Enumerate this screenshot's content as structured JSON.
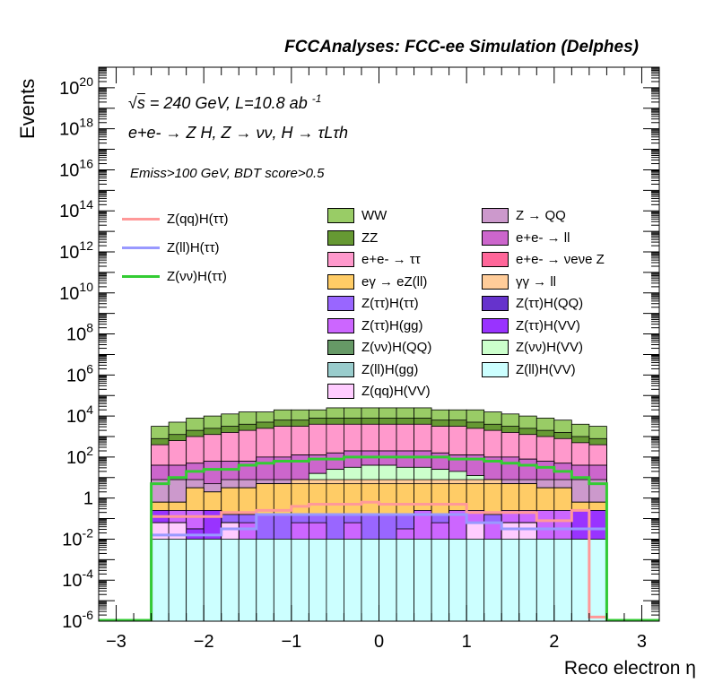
{
  "header": "FCCAnalyses: FCC-ee Simulation (Delphes)",
  "annotations": {
    "line1_sqrt": "s",
    "line1_rest": " = 240 GeV, L=10.8 ab",
    "line1_sup": "-1",
    "line2": "e+e- → Z H, Z → νν, H → τLτh",
    "line3": "Emiss>100 GeV, BDT score>0.5"
  },
  "chart_data": {
    "type": "bar",
    "subtype": "stacked-histogram-log",
    "xlabel": "Reco electron η",
    "ylabel": "Events",
    "xlim": [
      -3.2,
      3.2
    ],
    "ylim": [
      1e-06,
      1e+21
    ],
    "yscale": "log",
    "x_ticks": [
      "−3",
      "−2",
      "−1",
      "0",
      "1",
      "2",
      "3"
    ],
    "y_ticks": [
      "10^-6",
      "10^-4",
      "10^-2",
      "1",
      "10^2",
      "10^4",
      "10^6",
      "10^8",
      "10^10",
      "10^12",
      "10^14",
      "10^16",
      "10^18",
      "10^20"
    ],
    "bin_edges": [
      -2.6,
      -2.4,
      -2.2,
      -2.0,
      -1.8,
      -1.6,
      -1.4,
      -1.2,
      -1.0,
      -0.8,
      -0.6,
      -0.4,
      -0.2,
      0.0,
      0.2,
      0.4,
      0.6,
      0.8,
      1.0,
      1.2,
      1.4,
      1.6,
      1.8,
      2.0,
      2.2,
      2.4,
      2.6
    ],
    "stack_boundaries": [
      {
        "name": "Z(ll)H(VV)",
        "color": "#ccffff",
        "values": [
          -2,
          -2,
          -2,
          -2,
          -2,
          -2,
          -2,
          -2,
          -2,
          -2,
          -2,
          -2,
          -2,
          -2,
          -2,
          -2,
          -2,
          -2,
          -2,
          -2,
          -2,
          -2,
          -2,
          -2,
          -2,
          -2
        ]
      },
      {
        "name": "Z(qq)H(VV)",
        "color": "#ffccff",
        "values": [
          -1.2,
          -1.2,
          -2,
          -2,
          -1.2,
          -2,
          -2,
          -2,
          -2,
          -2,
          -2,
          -2,
          -2,
          -2,
          -2,
          -2,
          -2,
          -2,
          -1.2,
          -2,
          -1.2,
          -1.2,
          -2,
          -2,
          -2,
          -2
        ]
      },
      {
        "name": "Z(ττ)H(QQ)",
        "color": "#6633cc",
        "values": [
          -1.2,
          -1.2,
          -2,
          -2,
          -1.2,
          -2,
          -2,
          -2,
          -2,
          -2,
          -2,
          -2,
          -2,
          -2,
          -2,
          -2,
          -2,
          -2,
          -1.2,
          -2,
          -1.2,
          -1.2,
          -2,
          -5.2,
          -2,
          -2
        ]
      },
      {
        "name": "Z(ττ)H(VV)",
        "color": "#9933ff",
        "values": [
          -0.6,
          -1.2,
          -1.5,
          -0.6,
          -1.2,
          -2,
          -2,
          -2,
          -2,
          -2,
          -2,
          -2,
          -2,
          -2,
          -2,
          -2,
          -2,
          -2,
          -1.2,
          -2,
          -1.2,
          -1.2,
          -2,
          -5.2,
          -0.6,
          -0.6
        ]
      },
      {
        "name": "Z(ll)H(gg)",
        "color": "#99cccc",
        "values": [
          -0.6,
          -1.2,
          -1.5,
          -0.6,
          -1.2,
          -2,
          -2,
          -2,
          -2,
          -2,
          -2,
          -2,
          -2,
          -2,
          -2,
          -2,
          -2,
          -2,
          -1.2,
          -2,
          -1.2,
          -1.2,
          -2,
          -5.2,
          -0.6,
          -0.6
        ]
      },
      {
        "name": "Z(νν)H(QQ)",
        "color": "#669966",
        "values": [
          -0.6,
          -1.2,
          -1.5,
          -0.6,
          -1.2,
          -2,
          -2,
          -2,
          -2,
          -2,
          -2,
          -2,
          -2,
          -2,
          -2,
          -2,
          -2,
          -2,
          -1.2,
          -2,
          -1.2,
          -1.2,
          -2,
          -2,
          -0.6,
          -0.6
        ]
      },
      {
        "name": "Z(ττ)H(gg)",
        "color": "#cc66ff",
        "values": [
          -0.6,
          -0.6,
          -0.6,
          -0.6,
          -1.2,
          -1.2,
          -2,
          -2,
          -1.2,
          -1.2,
          -2,
          -1.2,
          -2,
          -2,
          -1.5,
          -0.6,
          -1.2,
          -0.6,
          -0.6,
          -1.2,
          -0.6,
          -0.6,
          -0.6,
          -0.6,
          -0.6,
          -0.6
        ]
      },
      {
        "name": "Z(ττ)H(ττ)",
        "color": "#9966ff",
        "values": [
          -0.6,
          -0.6,
          -0.6,
          -0.6,
          -0.8,
          -0.8,
          -0.8,
          -0.8,
          -0.8,
          -0.8,
          -0.8,
          -0.8,
          -0.8,
          -0.8,
          -0.8,
          -0.8,
          -0.8,
          -0.8,
          -0.8,
          -0.8,
          -0.8,
          -0.8,
          -0.8,
          -0.8,
          -0.6,
          -0.6
        ]
      },
      {
        "name": "eγ → eZ(ll)",
        "color": "#ffcc66",
        "values": [
          -0.2,
          -0.2,
          0.5,
          0.3,
          0.5,
          0.5,
          0.7,
          0.7,
          0.7,
          0.7,
          0.7,
          0.7,
          0.7,
          0.7,
          0.7,
          0.7,
          0.7,
          0.7,
          0.7,
          0.7,
          0.7,
          0.7,
          0.5,
          0.5,
          -0.2,
          -0.2
        ]
      },
      {
        "name": "γγ → ll",
        "color": "#ffcc99",
        "values": [
          -0.2,
          -0.2,
          0.5,
          0.3,
          0.5,
          0.5,
          0.7,
          0.7,
          0.9,
          0.9,
          0.9,
          0.9,
          0.9,
          0.9,
          0.9,
          0.9,
          0.9,
          0.9,
          0.9,
          0.9,
          0.7,
          0.7,
          0.5,
          0.5,
          -0.2,
          -0.2
        ]
      },
      {
        "name": "Z(νν)H(VV)",
        "color": "#ccffcc",
        "values": [
          -0.2,
          -0.2,
          0.5,
          0.3,
          0.5,
          0.5,
          0.7,
          0.7,
          0.9,
          1.2,
          1.4,
          1.5,
          1.6,
          1.6,
          1.5,
          1.5,
          1.4,
          1.3,
          1.1,
          0.9,
          0.7,
          0.7,
          0.5,
          0.5,
          -0.2,
          -0.2
        ]
      },
      {
        "name": "Z → QQ",
        "color": "#cc99cc",
        "values": [
          0.9,
          0.9,
          0.9,
          0.7,
          0.9,
          0.9,
          0.9,
          0.9,
          0.9,
          1.2,
          1.4,
          1.5,
          1.6,
          1.6,
          1.5,
          1.5,
          1.4,
          1.3,
          1.1,
          0.9,
          0.9,
          0.9,
          0.9,
          0.9,
          0.9,
          0.9
        ]
      },
      {
        "name": "e+e- → ll",
        "color": "#cc66cc",
        "values": [
          1.6,
          1.6,
          1.7,
          1.8,
          1.8,
          1.8,
          2.0,
          2.0,
          2.1,
          2.1,
          2.2,
          2.3,
          2.3,
          2.3,
          2.3,
          2.3,
          2.2,
          2.1,
          2.1,
          2.0,
          2.0,
          1.9,
          1.8,
          1.7,
          1.6,
          1.6
        ]
      },
      {
        "name": "e+e- → νeνe Z",
        "color": "#ff6699",
        "values": [
          1.6,
          1.6,
          1.7,
          1.8,
          1.8,
          1.8,
          2.0,
          2.0,
          2.1,
          2.1,
          2.2,
          2.3,
          2.3,
          2.3,
          2.3,
          2.3,
          2.2,
          2.1,
          2.1,
          2.0,
          2.0,
          1.9,
          1.8,
          1.7,
          1.6,
          1.6
        ]
      },
      {
        "name": "e+e- → ττ",
        "color": "#ff99cc",
        "values": [
          2.6,
          2.8,
          3.0,
          3.1,
          3.2,
          3.3,
          3.4,
          3.5,
          3.5,
          3.6,
          3.6,
          3.6,
          3.6,
          3.6,
          3.6,
          3.6,
          3.5,
          3.5,
          3.4,
          3.3,
          3.2,
          3.1,
          3.0,
          2.9,
          2.7,
          2.6
        ]
      },
      {
        "name": "ZZ",
        "color": "#669933",
        "values": [
          2.9,
          3.1,
          3.3,
          3.4,
          3.5,
          3.6,
          3.7,
          3.8,
          3.8,
          3.9,
          3.9,
          3.9,
          3.9,
          3.9,
          3.9,
          3.9,
          3.8,
          3.8,
          3.7,
          3.6,
          3.5,
          3.4,
          3.3,
          3.2,
          3.0,
          2.9
        ]
      },
      {
        "name": "WW",
        "color": "#99cc66",
        "values": [
          3.5,
          3.7,
          3.9,
          4.0,
          4.1,
          4.2,
          4.2,
          4.3,
          4.3,
          4.3,
          4.4,
          4.4,
          4.4,
          4.4,
          4.4,
          4.4,
          4.3,
          4.3,
          4.3,
          4.2,
          4.1,
          4.0,
          3.9,
          3.8,
          3.6,
          3.5
        ]
      }
    ],
    "signal_lines": [
      {
        "name": "Z(qq)H(ττ)",
        "color": "#ff9999",
        "values": [
          -0.9,
          -0.9,
          -0.9,
          -0.9,
          -0.7,
          -0.7,
          -0.6,
          -0.6,
          -0.4,
          -0.3,
          -0.3,
          -0.3,
          -0.2,
          -0.3,
          -0.3,
          -0.3,
          -0.3,
          -0.3,
          -0.7,
          -0.7,
          -0.7,
          -0.7,
          -1.1,
          -1.1,
          -0.6,
          -5.8
        ]
      },
      {
        "name": "Z(ll)H(ττ)",
        "color": "#9999ff",
        "values": [
          -1.8,
          -1.8,
          -1.8,
          -1.8,
          -1.5,
          -1.5,
          -0.8,
          -0.8,
          -0.8,
          -0.8,
          -0.8,
          -0.8,
          -0.8,
          -0.8,
          -0.8,
          -0.8,
          -0.8,
          -0.8,
          -1.2,
          -1.2,
          -1.5,
          -1.5,
          -1.5,
          -1.5,
          -1.5,
          -1.5
        ]
      },
      {
        "name": "Z(νν)H(ττ)",
        "color": "#33cc33",
        "values": [
          0.7,
          1.0,
          1.3,
          1.4,
          1.4,
          1.6,
          1.7,
          1.8,
          1.8,
          1.9,
          1.9,
          2.0,
          2.0,
          2.0,
          2.0,
          2.0,
          2.0,
          1.9,
          1.9,
          1.8,
          1.7,
          1.6,
          1.5,
          1.3,
          1.0,
          0.7
        ]
      }
    ],
    "legend_left": [
      "Z(qq)H(ττ)",
      "Z(ll)H(ττ)",
      "Z(νν)H(ττ)"
    ],
    "legend_boxes": [
      {
        "label": "WW",
        "color": "#99cc66"
      },
      {
        "label": "Z → QQ",
        "color": "#cc99cc"
      },
      {
        "label": "ZZ",
        "color": "#669933"
      },
      {
        "label": "e+e- → ll",
        "color": "#cc66cc"
      },
      {
        "label": "e+e- → ττ",
        "color": "#ff99cc"
      },
      {
        "label": "e+e- → νeνe Z",
        "color": "#ff6699"
      },
      {
        "label": "eγ → eZ(ll)",
        "color": "#ffcc66"
      },
      {
        "label": "γγ → ll",
        "color": "#ffcc99"
      },
      {
        "label": "Z(ττ)H(ττ)",
        "color": "#9966ff"
      },
      {
        "label": "Z(ττ)H(QQ)",
        "color": "#6633cc"
      },
      {
        "label": "Z(ττ)H(gg)",
        "color": "#cc66ff"
      },
      {
        "label": "Z(ττ)H(VV)",
        "color": "#9933ff"
      },
      {
        "label": "Z(νν)H(QQ)",
        "color": "#669966"
      },
      {
        "label": "Z(νν)H(VV)",
        "color": "#ccffcc"
      },
      {
        "label": "Z(ll)H(gg)",
        "color": "#99cccc"
      },
      {
        "label": "Z(ll)H(VV)",
        "color": "#ccffff"
      },
      {
        "label": "Z(qq)H(VV)",
        "color": "#ffccff"
      }
    ]
  }
}
